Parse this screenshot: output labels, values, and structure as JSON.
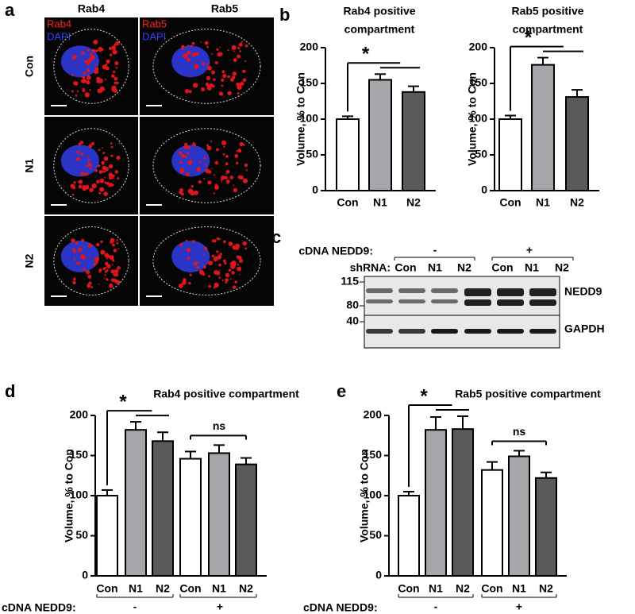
{
  "panel_labels": [
    "a",
    "b",
    "c",
    "d",
    "e"
  ],
  "micrographs": {
    "columns": [
      "Rab4",
      "Rab5"
    ],
    "rows": [
      "Con",
      "N1",
      "N2"
    ],
    "channels": [
      [
        "Rab4",
        "DAPI"
      ],
      [
        "Rab5",
        "DAPI"
      ]
    ]
  },
  "blot": {
    "cdna_label": "cDNA NEDD9:",
    "cdna_groups": [
      "-",
      "+"
    ],
    "shrna_label": "shRNA:",
    "lanes": [
      "Con",
      "N1",
      "N2",
      "Con",
      "N1",
      "N2"
    ],
    "markers": [
      "115",
      "80",
      "40"
    ],
    "proteins": [
      "NEDD9",
      "GAPDH"
    ]
  },
  "chart_data": [
    {
      "type": "bar",
      "title": [
        "Rab4 positive",
        "compartment"
      ],
      "y_label": "Volume, % to Con",
      "categories": [
        "Con",
        "N1",
        "N2"
      ],
      "values": [
        100,
        155,
        138
      ],
      "errors": [
        4,
        8,
        8
      ],
      "colors": [
        "#ffffff",
        "#a6a6aa",
        "#5a5a5a"
      ],
      "ylim": [
        0,
        200
      ],
      "yticks": [
        0,
        50,
        100,
        150,
        200
      ],
      "significance": [
        "*"
      ]
    },
    {
      "type": "bar",
      "title": [
        "Rab5 positive",
        "compartment"
      ],
      "y_label": "Volume, % to Con",
      "categories": [
        "Con",
        "N1",
        "N2"
      ],
      "values": [
        100,
        176,
        131
      ],
      "errors": [
        5,
        10,
        10
      ],
      "colors": [
        "#ffffff",
        "#a6a6aa",
        "#5a5a5a"
      ],
      "ylim": [
        0,
        200
      ],
      "yticks": [
        0,
        50,
        100,
        150,
        200
      ],
      "significance": [
        "*"
      ]
    },
    {
      "type": "bar",
      "title": [
        "Rab4 positive compartment"
      ],
      "y_label": "Volume, % to Con",
      "categories": [
        "Con",
        "N1",
        "N2",
        "Con",
        "N1",
        "N2"
      ],
      "values": [
        100,
        182,
        168,
        146,
        153,
        139
      ],
      "errors": [
        7,
        10,
        11,
        9,
        10,
        8
      ],
      "colors": [
        "#ffffff",
        "#a6a6aa",
        "#5a5a5a",
        "#ffffff",
        "#a6a6aa",
        "#5a5a5a"
      ],
      "ylim": [
        0,
        200
      ],
      "yticks": [
        0,
        50,
        100,
        150,
        200
      ],
      "significance": [
        "*",
        "ns"
      ],
      "group_label": "cDNA NEDD9:",
      "groups": [
        "-",
        "+"
      ]
    },
    {
      "type": "bar",
      "title": [
        "Rab5 positive compartment"
      ],
      "y_label": "Volume, % to Con",
      "categories": [
        "Con",
        "N1",
        "N2",
        "Con",
        "N1",
        "N2"
      ],
      "values": [
        100,
        182,
        183,
        132,
        149,
        122
      ],
      "errors": [
        5,
        16,
        16,
        10,
        7,
        7
      ],
      "colors": [
        "#ffffff",
        "#a6a6aa",
        "#5a5a5a",
        "#ffffff",
        "#a6a6aa",
        "#5a5a5a"
      ],
      "ylim": [
        0,
        200
      ],
      "yticks": [
        0,
        50,
        100,
        150,
        200
      ],
      "significance": [
        "*",
        "ns"
      ],
      "group_label": "cDNA NEDD9:",
      "groups": [
        "-",
        "+"
      ]
    }
  ]
}
